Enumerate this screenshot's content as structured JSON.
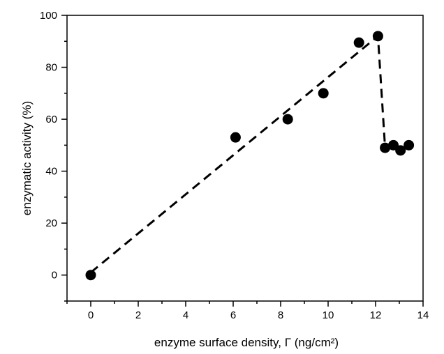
{
  "chart_data": {
    "type": "scatter",
    "title": "",
    "xlabel": "enzyme surface density, Γ (ng/cm²)",
    "ylabel": "enzymatic activity (%)",
    "xlim": [
      -1,
      14
    ],
    "ylim": [
      -10,
      100
    ],
    "x_ticks": [
      "0",
      "2",
      "4",
      "6",
      "8",
      "10",
      "12",
      "14"
    ],
    "y_ticks": [
      "0",
      "20",
      "40",
      "60",
      "80",
      "100"
    ],
    "series": [
      {
        "x": [
          0,
          6.1,
          8.3,
          9.8,
          11.3,
          12.1,
          12.4,
          12.75,
          13.05,
          13.4
        ],
        "y": [
          0,
          53,
          60,
          70,
          89.5,
          92,
          49,
          50,
          48,
          50
        ]
      }
    ],
    "fit_line": {
      "style": "dashed",
      "x": [
        0,
        12.1,
        12.4
      ],
      "y": [
        1,
        92,
        49
      ]
    },
    "grid": false,
    "legend": "none",
    "colors": {
      "marker": "#000000",
      "line": "#000000"
    }
  }
}
